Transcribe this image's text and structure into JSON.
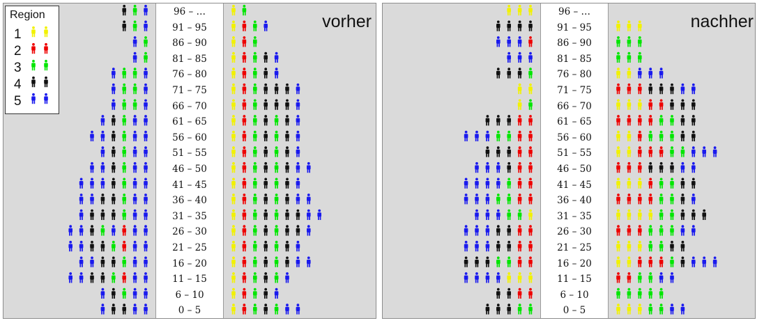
{
  "legend": {
    "title": "Region",
    "items": [
      {
        "label": "1",
        "color": "#f2f200"
      },
      {
        "label": "2",
        "color": "#ee0000"
      },
      {
        "label": "3",
        "color": "#00e600"
      },
      {
        "label": "4",
        "color": "#111111"
      },
      {
        "label": "5",
        "color": "#1a1aee"
      }
    ]
  },
  "age_groups": [
    "96 – …",
    "91 – 95",
    "86 – 90",
    "81 – 85",
    "76 – 80",
    "71 – 75",
    "66 – 70",
    "61 – 65",
    "56 – 60",
    "51 – 55",
    "46 – 50",
    "41 – 45",
    "36 – 40",
    "31 – 35",
    "26 – 30",
    "21 – 25",
    "16 – 20",
    "11 – 15",
    "6 – 10",
    "0 – 5"
  ],
  "icon": "person-icon",
  "panels": [
    {
      "title": "vorher",
      "left_rows": [
        "435",
        "435",
        "53",
        "53",
        "5335",
        "5335",
        "5335",
        "54355",
        "554355",
        "54355",
        "554355",
        "5554355",
        "5544355",
        "5444355",
        "55435255",
        "55443255",
        "5544355",
        "55443255",
        "54355",
        "54455"
      ],
      "right_rows": [
        "13",
        "1235",
        "123",
        "12345",
        "12345",
        "1234445",
        "1234445",
        "1234345",
        "1234345",
        "1234345",
        "12343455",
        "1234345",
        "12343455",
        "123434455",
        "12343445",
        "1234345",
        "12343455",
        "123435",
        "12345",
        "1234355"
      ]
    },
    {
      "title": "nachher",
      "left_rows": [
        "111",
        "4444",
        "5552",
        "555",
        "4443",
        "11",
        "13",
        "44422",
        "5553322",
        "44422",
        "555422",
        "5555322",
        "5553322",
        "555331",
        "5554422",
        "5554422",
        "4443322",
        "5555111",
        "4422",
        "44433"
      ],
      "right_rows": [
        "",
        "111",
        "333",
        "333",
        "11555",
        "22244455",
        "11122444",
        "22223344",
        "11233344",
        "1122233555",
        "22244455",
        "11123344",
        "22223345",
        "111133444",
        "22233355",
        "1113344",
        "1122234555",
        "223355",
        "33333",
        "1113355"
      ]
    }
  ]
}
